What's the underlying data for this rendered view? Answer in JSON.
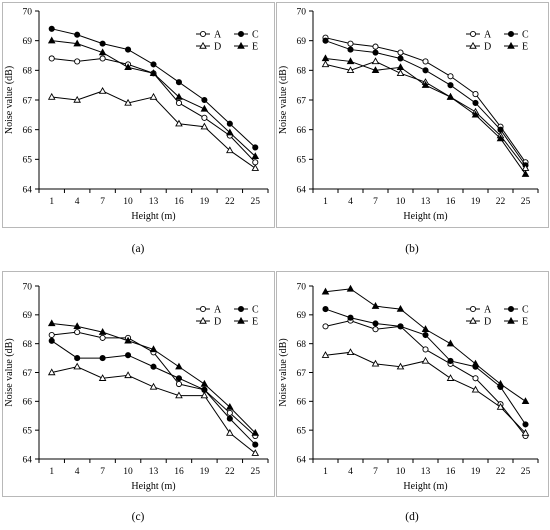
{
  "chart_data": [
    {
      "type": "line",
      "panel_label": "(a)",
      "xlabel": "Height (m)",
      "ylabel": "Noise value (dB)",
      "categories": [
        "1",
        "4",
        "7",
        "10",
        "13",
        "16",
        "19",
        "22",
        "25"
      ],
      "ylim": [
        64,
        70
      ],
      "yticks": [
        "64",
        "65",
        "66",
        "67",
        "68",
        "69",
        "70"
      ],
      "grid": false,
      "legend_position": "top-right",
      "series": [
        {
          "name": "A",
          "marker": "open-circle",
          "values": [
            68.4,
            68.3,
            68.4,
            68.2,
            67.9,
            66.9,
            66.4,
            65.8,
            64.9
          ]
        },
        {
          "name": "C",
          "marker": "filled-circle",
          "values": [
            69.4,
            69.2,
            68.9,
            68.7,
            68.2,
            67.6,
            67.0,
            66.2,
            65.4
          ]
        },
        {
          "name": "D",
          "marker": "open-triangle",
          "values": [
            67.1,
            67.0,
            67.3,
            66.9,
            67.1,
            66.2,
            66.1,
            65.3,
            64.7
          ]
        },
        {
          "name": "E",
          "marker": "filled-triangle",
          "values": [
            69.0,
            68.9,
            68.6,
            68.1,
            67.9,
            67.1,
            66.7,
            65.9,
            65.1
          ]
        }
      ]
    },
    {
      "type": "line",
      "panel_label": "(b)",
      "xlabel": "Height (m)",
      "ylabel": "Noise value (dB)",
      "categories": [
        "1",
        "4",
        "7",
        "10",
        "13",
        "16",
        "19",
        "22",
        "25"
      ],
      "ylim": [
        64,
        70
      ],
      "yticks": [
        "64",
        "65",
        "66",
        "67",
        "68",
        "69",
        "70"
      ],
      "grid": false,
      "legend_position": "top-right",
      "series": [
        {
          "name": "A",
          "marker": "open-circle",
          "values": [
            69.1,
            68.9,
            68.8,
            68.6,
            68.3,
            67.8,
            67.2,
            66.1,
            64.9
          ]
        },
        {
          "name": "C",
          "marker": "filled-circle",
          "values": [
            69.0,
            68.7,
            68.6,
            68.4,
            68.0,
            67.5,
            66.9,
            66.0,
            64.8
          ]
        },
        {
          "name": "D",
          "marker": "open-triangle",
          "values": [
            68.2,
            68.0,
            68.3,
            67.9,
            67.6,
            67.1,
            66.6,
            65.8,
            64.7
          ]
        },
        {
          "name": "E",
          "marker": "filled-triangle",
          "values": [
            68.4,
            68.3,
            68.0,
            68.1,
            67.5,
            67.1,
            66.5,
            65.7,
            64.5
          ]
        }
      ]
    },
    {
      "type": "line",
      "panel_label": "(c)",
      "xlabel": "Height (m)",
      "ylabel": "Noise value (dB)",
      "categories": [
        "1",
        "4",
        "7",
        "10",
        "13",
        "16",
        "19",
        "22",
        "25"
      ],
      "ylim": [
        64,
        70
      ],
      "yticks": [
        "64",
        "65",
        "66",
        "67",
        "68",
        "69",
        "70"
      ],
      "grid": false,
      "legend_position": "top-right",
      "series": [
        {
          "name": "A",
          "marker": "open-circle",
          "values": [
            68.3,
            68.4,
            68.2,
            68.2,
            67.7,
            66.6,
            66.4,
            65.6,
            64.8
          ]
        },
        {
          "name": "C",
          "marker": "filled-circle",
          "values": [
            68.1,
            67.5,
            67.5,
            67.6,
            67.2,
            66.8,
            66.4,
            65.4,
            64.5
          ]
        },
        {
          "name": "D",
          "marker": "open-triangle",
          "values": [
            67.0,
            67.2,
            66.8,
            66.9,
            66.5,
            66.2,
            66.2,
            64.9,
            64.2
          ]
        },
        {
          "name": "E",
          "marker": "filled-triangle",
          "values": [
            68.7,
            68.6,
            68.4,
            68.1,
            67.8,
            67.2,
            66.6,
            65.8,
            64.9
          ]
        }
      ]
    },
    {
      "type": "line",
      "panel_label": "(d)",
      "xlabel": "Height (m)",
      "ylabel": "Noise value (dB)",
      "categories": [
        "1",
        "4",
        "7",
        "10",
        "13",
        "16",
        "19",
        "22",
        "25"
      ],
      "ylim": [
        64,
        70
      ],
      "yticks": [
        "64",
        "65",
        "66",
        "67",
        "68",
        "69",
        "70"
      ],
      "grid": false,
      "legend_position": "top-right",
      "series": [
        {
          "name": "A",
          "marker": "open-circle",
          "values": [
            68.6,
            68.8,
            68.5,
            68.6,
            67.8,
            67.3,
            66.8,
            65.9,
            64.8
          ]
        },
        {
          "name": "C",
          "marker": "filled-circle",
          "values": [
            69.2,
            68.9,
            68.7,
            68.6,
            68.3,
            67.4,
            67.2,
            66.5,
            65.2
          ]
        },
        {
          "name": "D",
          "marker": "open-triangle",
          "values": [
            67.6,
            67.7,
            67.3,
            67.2,
            67.4,
            66.8,
            66.4,
            65.8,
            64.9
          ]
        },
        {
          "name": "E",
          "marker": "filled-triangle",
          "values": [
            69.8,
            69.9,
            69.3,
            69.2,
            68.5,
            68.0,
            67.3,
            66.6,
            66.0
          ]
        }
      ]
    }
  ]
}
